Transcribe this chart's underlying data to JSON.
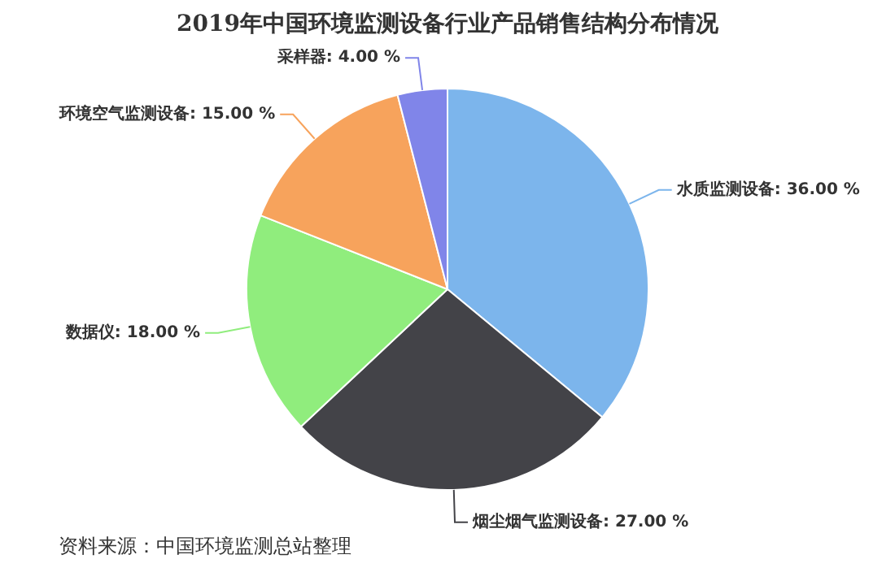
{
  "chart_data": {
    "type": "pie",
    "title": "2019年中国环境监测设备行业产品销售结构分布情况",
    "categories": [
      "水质监测设备",
      "烟尘烟气监测设备",
      "数据仪",
      "环境空气监测设备",
      "采样器"
    ],
    "values": [
      36,
      27,
      18,
      15,
      4
    ],
    "value_labels": [
      "36.00 %",
      "27.00 %",
      "18.00 %",
      "15.00 %",
      "4.00 %"
    ],
    "colors": [
      "#7cb5ec",
      "#434348",
      "#90ed7d",
      "#f7a35c",
      "#8085e9"
    ],
    "legend": false,
    "annotations": [
      "资料来源：中国环境监测总站整理"
    ]
  }
}
